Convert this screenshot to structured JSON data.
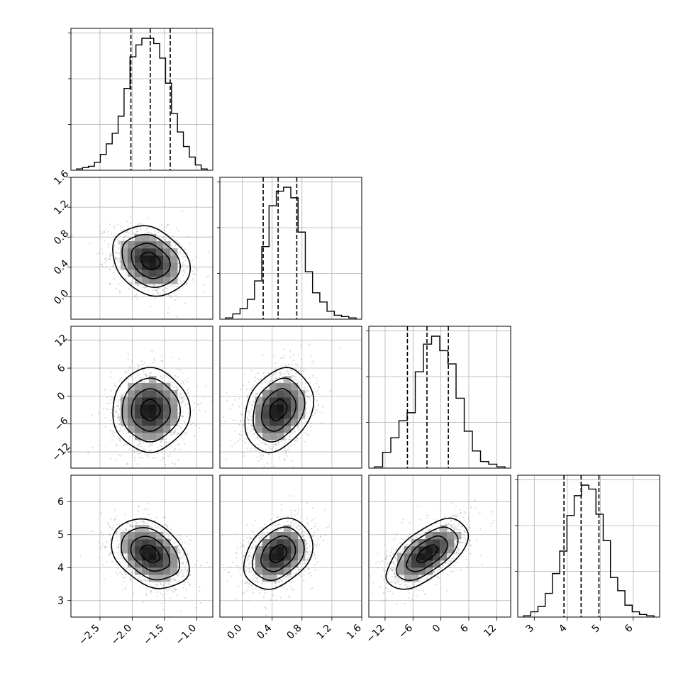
{
  "chart_data": {
    "type": "corner",
    "grid": true,
    "parameters": [
      {
        "id": "p0",
        "median": -1.72,
        "quantiles": [
          -2.02,
          -1.72,
          -1.41
        ],
        "sd": 0.3,
        "range": [
          -2.95,
          -0.75
        ],
        "ticks": [
          -2.5,
          -2.0,
          -1.5,
          -1.0
        ],
        "tick_labels": [
          "−2.5",
          "−2.0",
          "−1.5",
          "−1.0"
        ],
        "hist_counts": [
          0.01,
          0.02,
          0.03,
          0.06,
          0.12,
          0.2,
          0.28,
          0.41,
          0.62,
          0.86,
          0.95,
          1.0,
          1.0,
          0.96,
          0.85,
          0.66,
          0.43,
          0.29,
          0.18,
          0.1,
          0.04,
          0.01
        ]
      },
      {
        "id": "p1",
        "median": 0.48,
        "quantiles": [
          0.28,
          0.48,
          0.73
        ],
        "sd": 0.23,
        "range": [
          -0.3,
          1.6
        ],
        "ticks": [
          0.0,
          0.4,
          0.8,
          1.2,
          1.6
        ],
        "tick_labels": [
          "0.0",
          "0.4",
          "0.8",
          "1.2",
          "1.6"
        ],
        "hist_counts": [
          0.01,
          0.04,
          0.08,
          0.15,
          0.29,
          0.55,
          0.86,
          0.97,
          1.0,
          0.92,
          0.66,
          0.36,
          0.2,
          0.13,
          0.06,
          0.03,
          0.02,
          0.01
        ]
      },
      {
        "id": "p2",
        "median": -3.0,
        "quantiles": [
          -7.2,
          -3.0,
          1.6
        ],
        "sd": 4.4,
        "range": [
          -15.5,
          15.0
        ],
        "ticks": [
          -12,
          -6,
          0,
          6,
          12
        ],
        "tick_labels": [
          "−12",
          "−6",
          "0",
          "6",
          "12"
        ],
        "hist_counts": [
          0.01,
          0.12,
          0.23,
          0.36,
          0.42,
          0.73,
          0.94,
          1.0,
          0.89,
          0.79,
          0.53,
          0.28,
          0.13,
          0.05,
          0.03,
          0.01
        ]
      },
      {
        "id": "p3",
        "median": 4.42,
        "quantiles": [
          3.9,
          4.42,
          4.96
        ],
        "sd": 0.52,
        "range": [
          2.5,
          6.8
        ],
        "ticks": [
          3,
          4,
          5,
          6
        ],
        "tick_labels": [
          "3",
          "4",
          "5",
          "6"
        ],
        "hist_counts": [
          0.01,
          0.04,
          0.08,
          0.18,
          0.33,
          0.5,
          0.77,
          0.92,
          1.0,
          0.97,
          0.78,
          0.58,
          0.3,
          0.2,
          0.09,
          0.04,
          0.02,
          0.01
        ]
      }
    ],
    "row_tick_labels": {
      "1": {
        "ticks": [
          0.0,
          0.4,
          0.8,
          1.2,
          1.6
        ],
        "labels": [
          "0.0",
          "0.4",
          "0.8",
          "1.2",
          "1.6"
        ]
      },
      "2": {
        "ticks": [
          -12,
          -6,
          0,
          6,
          12
        ],
        "labels": [
          "−12",
          "−6",
          "0",
          "6",
          "12"
        ]
      },
      "3": {
        "ticks": [
          3,
          4,
          5,
          6
        ],
        "labels": [
          "3",
          "4",
          "5",
          "6"
        ]
      }
    },
    "correlations": {
      "1_0": -0.25,
      "2_0": 0.0,
      "2_1": 0.25,
      "3_0": -0.35,
      "3_1": 0.3,
      "3_2": 0.6
    }
  }
}
